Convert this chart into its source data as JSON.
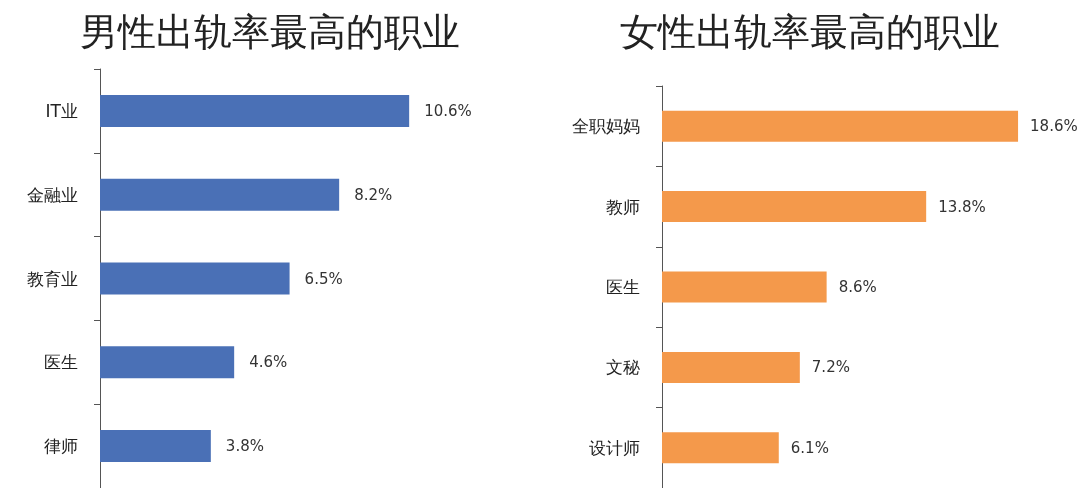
{
  "chart_data": [
    {
      "type": "bar",
      "orientation": "horizontal",
      "title": "男性出轨率最高的职业",
      "categories": [
        "IT业",
        "金融业",
        "教育业",
        "医生",
        "律师"
      ],
      "values": [
        10.6,
        8.2,
        6.5,
        4.6,
        3.8
      ],
      "value_labels": [
        "10.6%",
        "8.2%",
        "6.5%",
        "4.6%",
        "3.8%"
      ],
      "color": "#4a70b6",
      "tick_labels": "y"
    },
    {
      "type": "bar",
      "orientation": "horizontal",
      "title": "女性出轨率最高的职业",
      "categories": [
        "全职妈妈",
        "教师",
        "医生",
        "文秘",
        "设计师"
      ],
      "values": [
        18.6,
        13.8,
        8.6,
        7.2,
        6.1
      ],
      "value_labels": [
        "18.6%",
        "13.8%",
        "8.6%",
        "7.2%",
        "6.1%"
      ],
      "color": "#f4994b",
      "tick_labels": "y"
    }
  ]
}
